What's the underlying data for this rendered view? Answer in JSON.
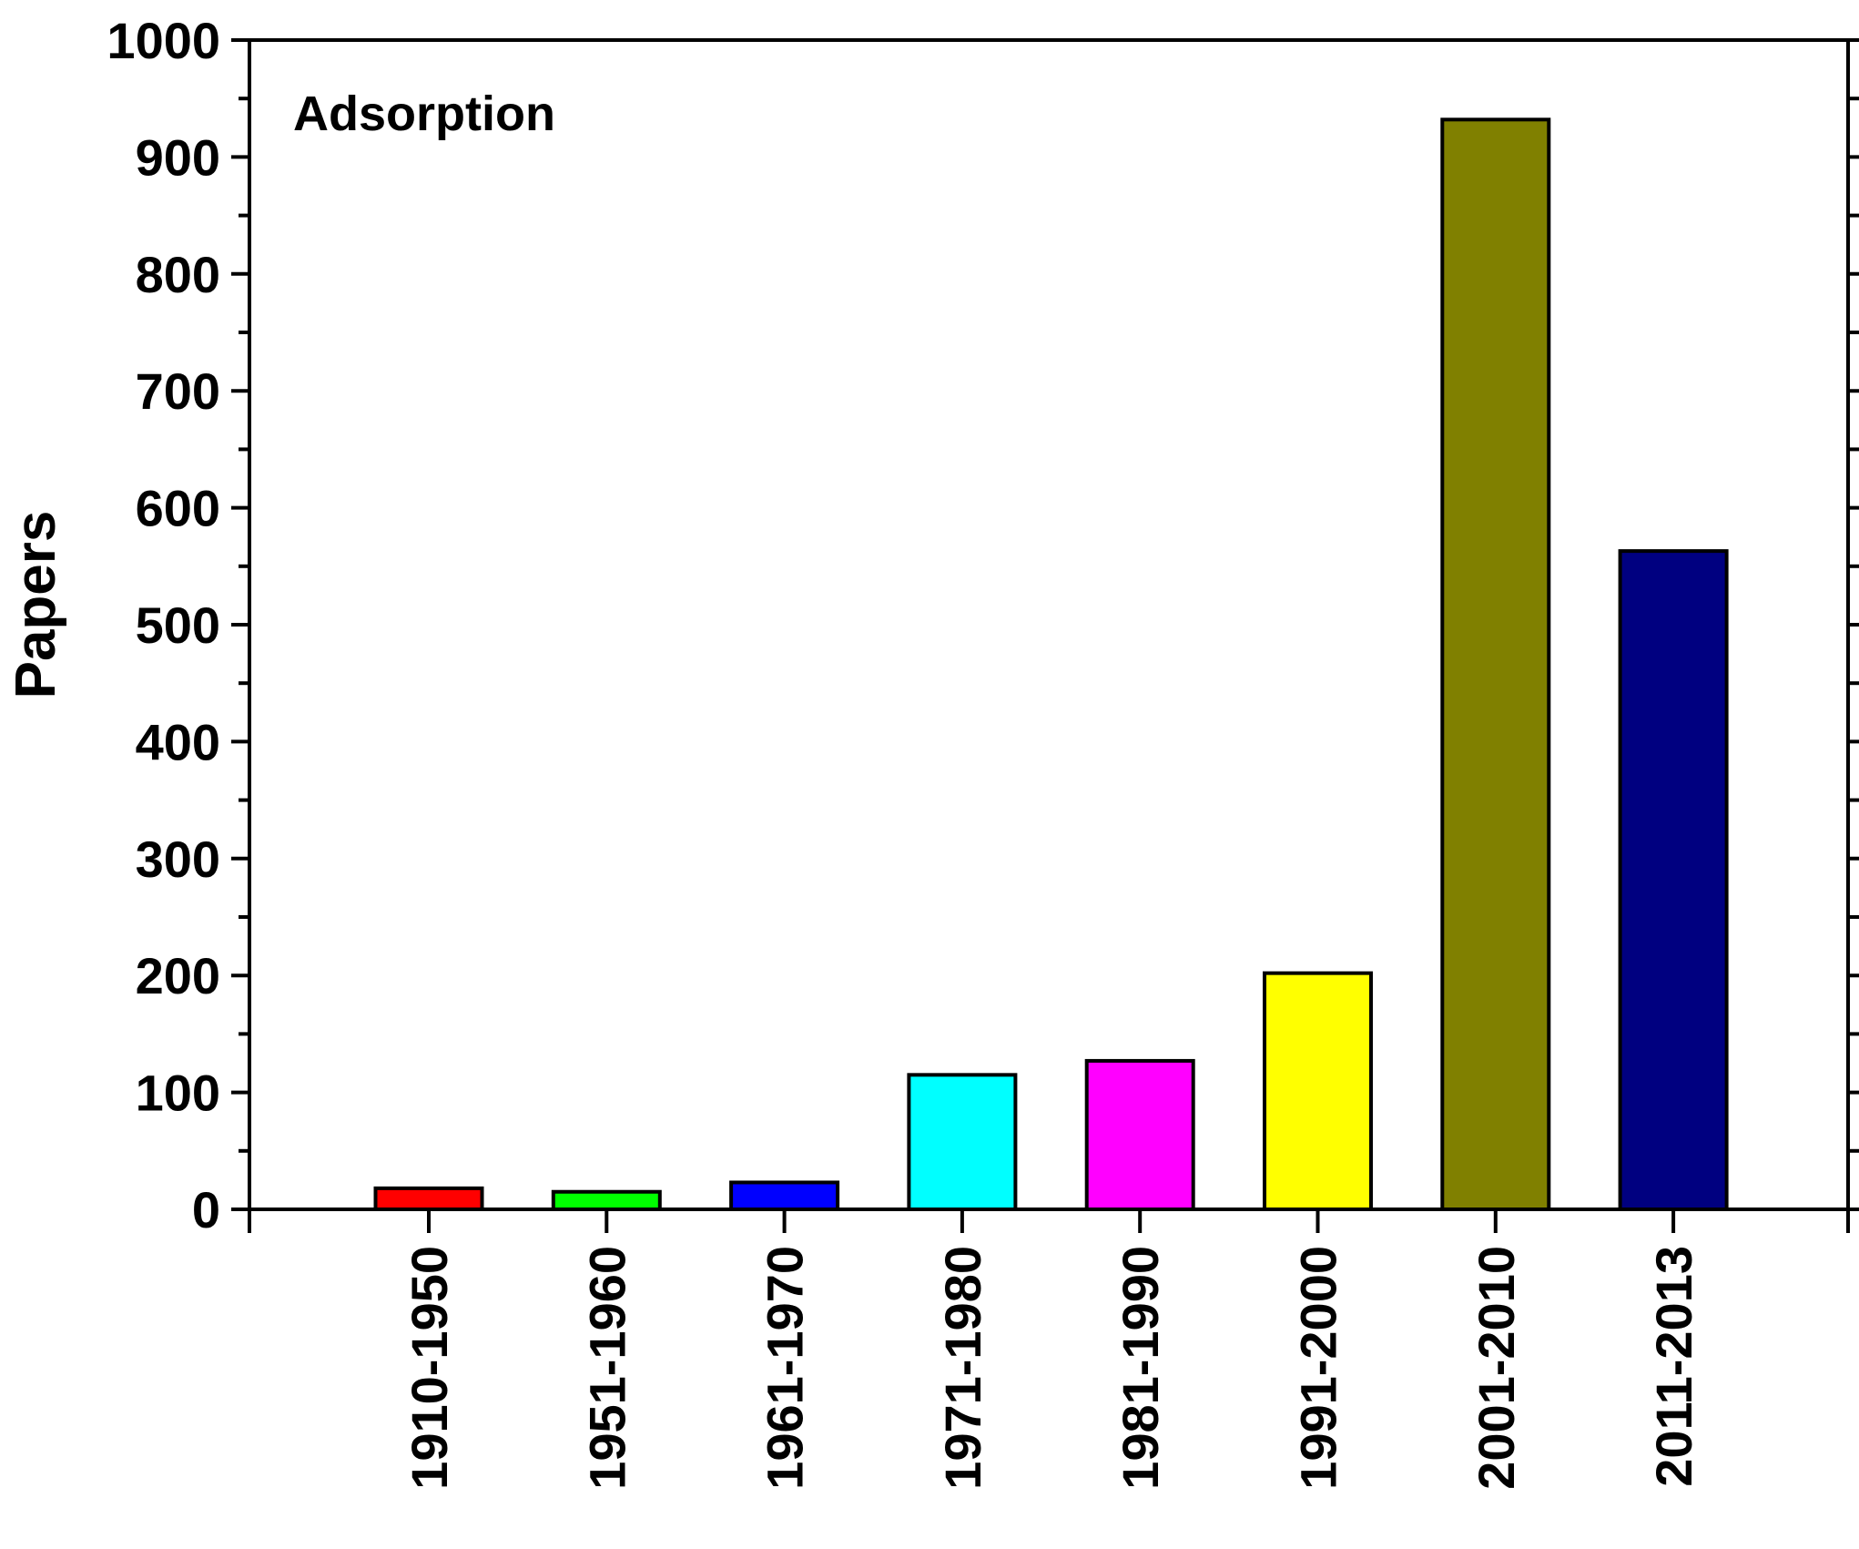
{
  "chart_data": {
    "type": "bar",
    "title": "",
    "annotation": "Adsorption",
    "xlabel": "",
    "ylabel": "Papers",
    "categories": [
      "1910-1950",
      "1951-1960",
      "1961-1970",
      "1971-1980",
      "1981-1990",
      "1991-2000",
      "2001-2010",
      "2011-2013"
    ],
    "values": [
      18,
      15,
      23,
      115,
      127,
      202,
      932,
      563
    ],
    "colors": [
      "#ff0000",
      "#00ff00",
      "#0000ff",
      "#00ffff",
      "#ff00ff",
      "#ffff00",
      "#808000",
      "#000080"
    ],
    "ylim": [
      0,
      1000
    ],
    "yticks": [
      "0",
      "100",
      "200",
      "300",
      "400",
      "500",
      "600",
      "700",
      "800",
      "900",
      "1000"
    ],
    "grid": false,
    "legend": "none"
  }
}
